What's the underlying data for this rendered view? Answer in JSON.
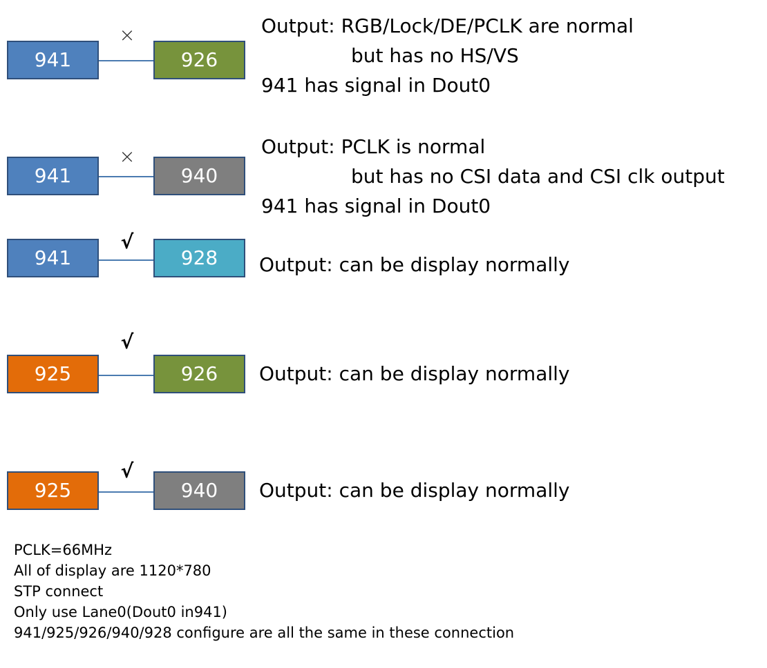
{
  "colors": {
    "941": "#4f81bd",
    "925": "#e36c09",
    "926": "#77933c",
    "940": "#7f7f7f",
    "928": "#4bacc6"
  },
  "rows": [
    {
      "left_label": "941",
      "left_color": "#4f81bd",
      "right_label": "926",
      "right_color": "#77933c",
      "mark": "×",
      "lines": [
        "Output: RGB/Lock/DE/PCLK are normal",
        "but has no HS/VS",
        "941 has signal in Dout0"
      ]
    },
    {
      "left_label": "941",
      "left_color": "#4f81bd",
      "right_label": "940",
      "right_color": "#7f7f7f",
      "mark": "×",
      "lines": [
        "Output: PCLK is normal",
        "but has no CSI data and CSI clk output",
        "941 has signal in Dout0"
      ]
    },
    {
      "left_label": "941",
      "left_color": "#4f81bd",
      "right_label": "928",
      "right_color": "#4bacc6",
      "mark": "√",
      "lines": [
        "Output: can be display normally"
      ]
    },
    {
      "left_label": "925",
      "left_color": "#e36c09",
      "right_label": "926",
      "right_color": "#77933c",
      "mark": "√",
      "lines": [
        "Output: can be display normally"
      ]
    },
    {
      "left_label": "925",
      "left_color": "#e36c09",
      "right_label": "940",
      "right_color": "#7f7f7f",
      "mark": "√",
      "lines": [
        "Output: can be display normally"
      ]
    }
  ],
  "notes": [
    "PCLK=66MHz",
    "All of display are 1120*780",
    "STP connect",
    "Only use Lane0(Dout0 in941)",
    "941/925/926/940/928 configure are all the same in these connection"
  ]
}
